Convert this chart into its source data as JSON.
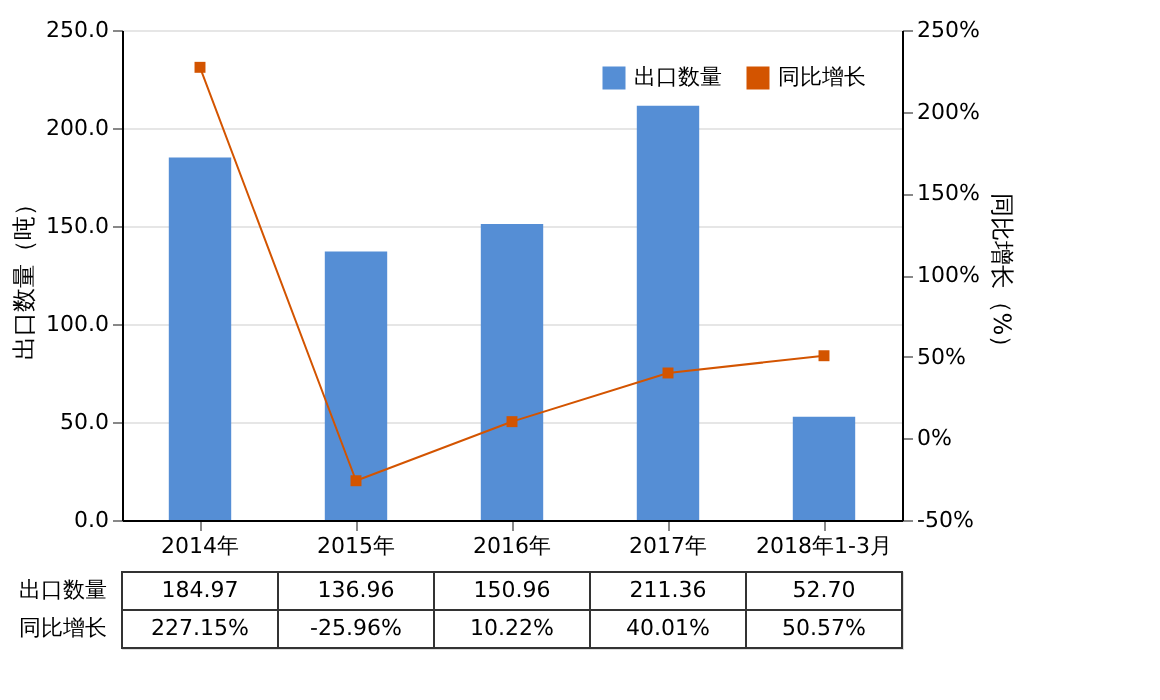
{
  "chart_data": {
    "type": "bar",
    "categories": [
      "2014年",
      "2015年",
      "2016年",
      "2017年",
      "2018年1-3月"
    ],
    "series": [
      {
        "name": "出口数量",
        "color": "#558ed5",
        "values": [
          184.97,
          136.96,
          150.96,
          211.36,
          52.7
        ],
        "value_labels": [
          "184.97",
          "136.96",
          "150.96",
          "211.36",
          "52.70"
        ]
      },
      {
        "name": "同比增长",
        "type": "line",
        "axis": "y2",
        "color": "#d35400",
        "marker": "square",
        "values": [
          227.15,
          -25.96,
          10.22,
          40.01,
          50.57
        ],
        "value_labels": [
          "227.15%",
          "-25.96%",
          "10.22%",
          "40.01%",
          "50.57%"
        ]
      }
    ],
    "ylabel": "出口数量（吨）",
    "y2label": "同比增长（%）",
    "ylim": [
      0,
      250
    ],
    "yticks": [
      {
        "value": 0,
        "label": "0.0"
      },
      {
        "value": 50,
        "label": "50.0"
      },
      {
        "value": 100,
        "label": "100.0"
      },
      {
        "value": 150,
        "label": "150.0"
      },
      {
        "value": 200,
        "label": "200.0"
      },
      {
        "value": 250,
        "label": "250.0"
      }
    ],
    "y2lim": [
      -50,
      250
    ],
    "y2ticks": [
      {
        "value": -50,
        "label": "-50%"
      },
      {
        "value": 0,
        "label": "0%"
      },
      {
        "value": 50,
        "label": "50%"
      },
      {
        "value": 100,
        "label": "100%"
      },
      {
        "value": 150,
        "label": "150%"
      },
      {
        "value": 200,
        "label": "200%"
      },
      {
        "value": 250,
        "label": "250%"
      }
    ],
    "grid": "y",
    "legend": "top right",
    "line_style": "solid"
  }
}
